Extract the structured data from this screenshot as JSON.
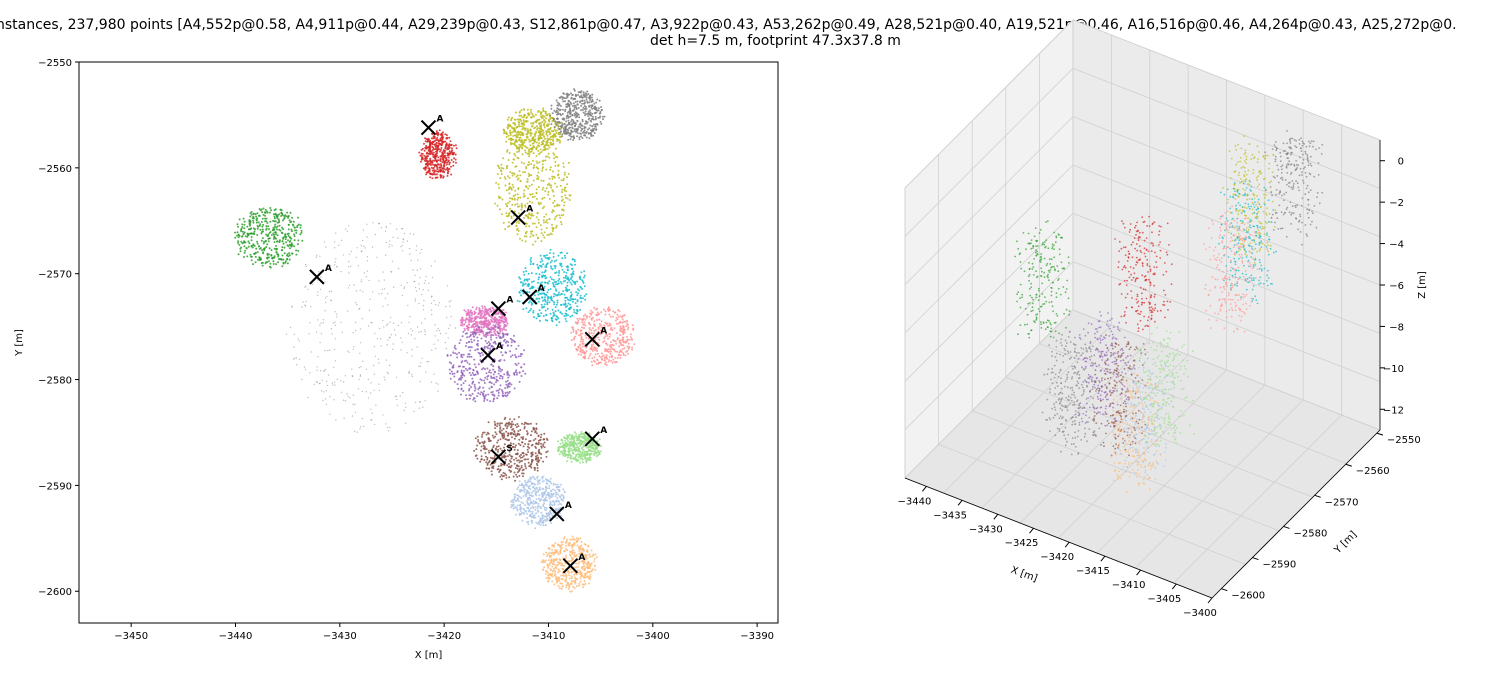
{
  "chart_data": [
    {
      "type": "scatter",
      "title_line1": "nstances, 237,980 points [A4,552p@0.58, A4,911p@0.44, A29,239p@0.43, S12,861p@0.47, A3,922p@0.43, A53,262p@0.49, A28,521p@0.40, A19,521p@0.46, A16,516p@0.46, A4,264p@0.43, A25,272p@0.",
      "title_line2": "det h=7.5 m, footprint 47.3x37.8 m",
      "xlabel": "X [m]",
      "ylabel": "Y [m]",
      "xlim": [
        -3455,
        -3388
      ],
      "ylim": [
        -2603,
        -2550
      ],
      "xticks": [
        -3450,
        -3440,
        -3430,
        -3420,
        -3410,
        -3400,
        -3390
      ],
      "yticks": [
        -2550,
        -2560,
        -2570,
        -2580,
        -2590,
        -2600
      ],
      "grid": false,
      "clusters": [
        {
          "color": "#d62728",
          "cx": -3420.6,
          "cy": -2558.8,
          "rx": 1.6,
          "ry": 2.2
        },
        {
          "color": "#bcbd22",
          "cx": -3411.5,
          "cy": -2562.0,
          "rx": 3.6,
          "ry": 5.2
        },
        {
          "color": "#bcbd22",
          "cx": -3411.5,
          "cy": -2556.5,
          "rx": 2.8,
          "ry": 2.0
        },
        {
          "color": "#7f7f7f",
          "cx": -3407.2,
          "cy": -2555.0,
          "rx": 2.4,
          "ry": 2.3
        },
        {
          "color": "#2ca02c",
          "cx": -3436.8,
          "cy": -2566.5,
          "rx": 3.2,
          "ry": 2.8
        },
        {
          "color": "#17becf",
          "cx": -3409.6,
          "cy": -2571.3,
          "rx": 3.3,
          "ry": 3.4
        },
        {
          "color": "#ff9896",
          "cx": -3404.8,
          "cy": -2575.9,
          "rx": 3.0,
          "ry": 2.6
        },
        {
          "color": "#e377c2",
          "cx": -3416.1,
          "cy": -2574.5,
          "rx": 2.2,
          "ry": 1.3
        },
        {
          "color": "#9467bd",
          "cx": -3416.0,
          "cy": -2578.5,
          "rx": 3.7,
          "ry": 3.6
        },
        {
          "color": "#8c564b",
          "cx": -3413.5,
          "cy": -2586.5,
          "rx": 3.4,
          "ry": 2.8
        },
        {
          "color": "#98df8a",
          "cx": -3407.0,
          "cy": -2586.4,
          "rx": 2.0,
          "ry": 1.3
        },
        {
          "color": "#aec7e8",
          "cx": -3411.0,
          "cy": -2591.5,
          "rx": 2.6,
          "ry": 2.3
        },
        {
          "color": "#ffbb78",
          "cx": -3408.0,
          "cy": -2597.4,
          "rx": 2.5,
          "ry": 2.5
        },
        {
          "color": "#888888",
          "cx": -3427.0,
          "cy": -2575.0,
          "rx": 8.0,
          "ry": 10.0
        }
      ],
      "markers": [
        {
          "x": -3421.5,
          "y": -2556.2,
          "label": "A"
        },
        {
          "x": -3412.9,
          "y": -2564.7,
          "label": "A"
        },
        {
          "x": -3432.2,
          "y": -2570.3,
          "label": "A"
        },
        {
          "x": -3411.8,
          "y": -2572.2,
          "label": "A"
        },
        {
          "x": -3414.8,
          "y": -2573.3,
          "label": "A"
        },
        {
          "x": -3405.8,
          "y": -2576.2,
          "label": "A"
        },
        {
          "x": -3415.8,
          "y": -2577.7,
          "label": "A"
        },
        {
          "x": -3405.8,
          "y": -2585.6,
          "label": "A"
        },
        {
          "x": -3414.8,
          "y": -2587.3,
          "label": "S"
        },
        {
          "x": -3409.2,
          "y": -2592.7,
          "label": "A"
        },
        {
          "x": -3407.9,
          "y": -2597.6,
          "label": "A"
        }
      ]
    },
    {
      "type": "scatter3d",
      "xlabel": "X [m]",
      "ylabel": "Y [m]",
      "zlabel": "Z [m]",
      "xticks": [
        -3440,
        -3435,
        -3430,
        -3425,
        -3420,
        -3415,
        -3410,
        -3405,
        -3400
      ],
      "yticks": [
        -2550,
        -2560,
        -2570,
        -2580,
        -2590,
        -2600
      ],
      "zticks": [
        0,
        -2,
        -4,
        -6,
        -8,
        -10,
        -12
      ],
      "xlim": [
        -3443,
        -3400
      ],
      "ylim": [
        -2603,
        -2549
      ],
      "zlim": [
        -13,
        1
      ],
      "grid": true
    }
  ]
}
